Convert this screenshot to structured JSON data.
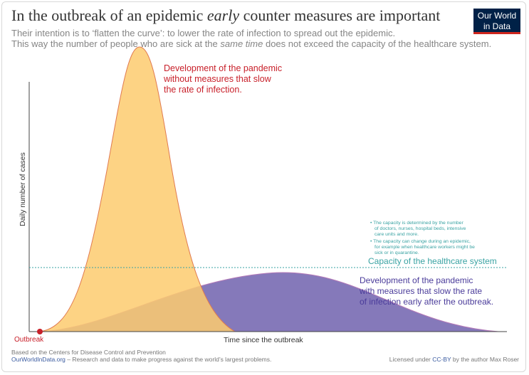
{
  "title": {
    "before": "In the outbreak of an epidemic ",
    "emph": "early",
    "after": " counter measures are important"
  },
  "subtitle": {
    "line1": "Their intention is to ‘flatten the curve’: to lower the rate of infection to spread out the epidemic.",
    "line2_before": "This way the number of people who are sick at the ",
    "line2_emph": "same time",
    "line2_after": " does not exceed the capacity of the healthcare system."
  },
  "logo": {
    "line1": "Our World",
    "line2": "in Data",
    "bg_color": "#002147",
    "accent_color": "#ce261e"
  },
  "axes": {
    "ylabel": "Daily number of cases",
    "xlabel": "Time since the outbreak",
    "origin_label": "Outbreak"
  },
  "annotations": {
    "no_measures": [
      "Development of the pandemic",
      "without measures that slow",
      "the rate of infection."
    ],
    "with_measures": [
      "Development of the pandemic",
      "with measures that slow the rate",
      "of infection early after the outbreak."
    ],
    "capacity_label": "Capacity of the healthcare system",
    "capacity_notes": [
      [
        "• The capacity is determined by the number",
        "of doctors, nurses, hospital beds, intensive",
        "care units and more."
      ],
      [
        "• The capacity can change during an epidemic,",
        "for example when healthcare workers might be",
        "sick or in quarantine."
      ]
    ]
  },
  "footer": {
    "line1": "Based on the Centers for Disease Control and Prevention",
    "site": "OurWorldInData.org",
    "line2_rest": " – Research and data to make progress against the world’s largest problems.",
    "license_before": "Licensed under ",
    "license_link": "CC-BY",
    "license_after": " by the author Max Roser"
  },
  "colors": {
    "orange_fill": "#fdcb6e",
    "orange_stroke": "#e07a50",
    "purple_fill": "#6a5bab",
    "purple_stroke": "#b47ab8",
    "capacity": "#3aa3a3",
    "red_text": "#c8202a",
    "purple_text": "#4a3b9a",
    "origin_dot": "#c8202a"
  }
}
